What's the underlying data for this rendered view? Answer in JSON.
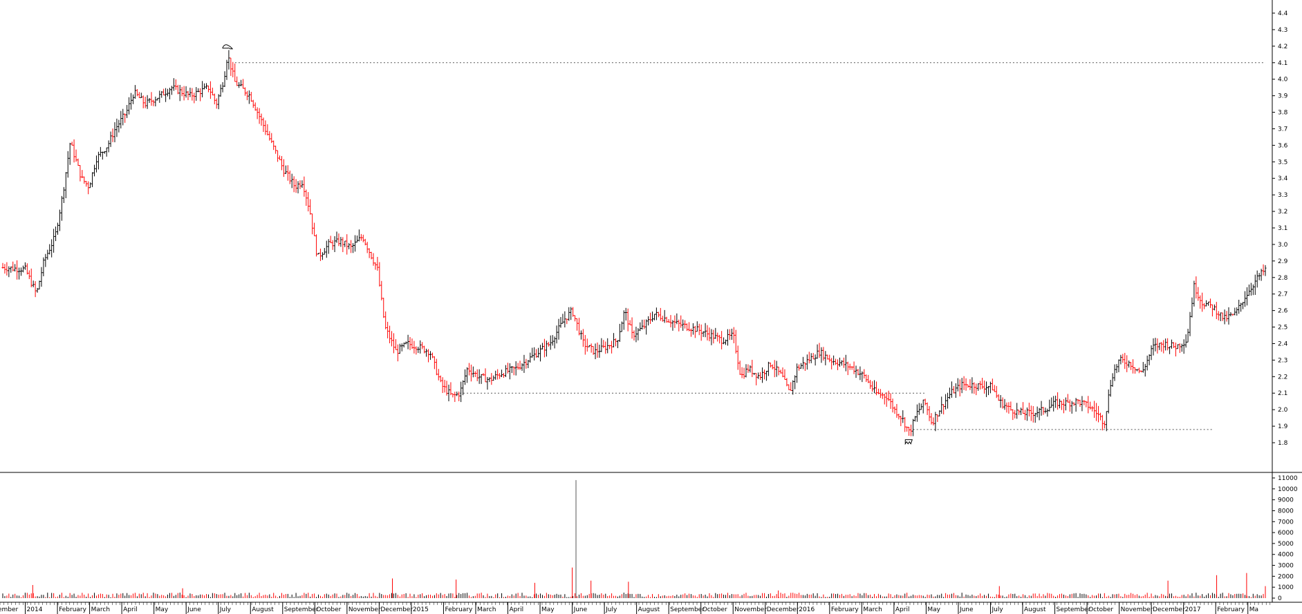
{
  "chart_data": [
    {
      "type": "candlestick",
      "title": "",
      "xlabel": "",
      "ylabel": "",
      "ylim": [
        1.72,
        4.45
      ],
      "yticks": [
        1.8,
        1.9,
        2.0,
        2.1,
        2.2,
        2.3,
        2.4,
        2.5,
        2.6,
        2.7,
        2.8,
        2.9,
        3.0,
        3.1,
        3.2,
        3.3,
        3.4,
        3.5,
        3.6,
        3.7,
        3.8,
        3.9,
        4.0,
        4.1,
        4.2,
        4.3,
        4.4
      ],
      "ytick_labels": [
        "1.8",
        "1.9",
        "2.0",
        "2.1",
        "2.2",
        "2.3",
        "2.4",
        "2.5",
        "2.6",
        "2.7",
        "2.8",
        "2.9",
        "3.0",
        "3.1",
        "3.2",
        "3.3",
        "3.4",
        "3.5",
        "3.6",
        "3.7",
        "3.8",
        "3.9",
        "4.0",
        "4.1",
        "4.2",
        "4.3",
        "4.4"
      ],
      "x_months": [
        "cember",
        "2014",
        "February",
        "March",
        "April",
        "May",
        "June",
        "July",
        "August",
        "September",
        "October",
        "November",
        "December",
        "2015",
        "February",
        "March",
        "April",
        "May",
        "June",
        "July",
        "August",
        "September",
        "October",
        "November",
        "December",
        "2016",
        "February",
        "March",
        "April",
        "May",
        "June",
        "July",
        "August",
        "September",
        "October",
        "November",
        "December",
        "2017",
        "February",
        "Ma"
      ],
      "price_path": [
        [
          0,
          2.86
        ],
        [
          6,
          2.85
        ],
        [
          9,
          2.7
        ],
        [
          11,
          2.9
        ],
        [
          14,
          3.05
        ],
        [
          16,
          3.3
        ],
        [
          18,
          3.62
        ],
        [
          21,
          3.4
        ],
        [
          23,
          3.35
        ],
        [
          25,
          3.52
        ],
        [
          28,
          3.6
        ],
        [
          30,
          3.7
        ],
        [
          33,
          3.8
        ],
        [
          35,
          3.92
        ],
        [
          38,
          3.85
        ],
        [
          42,
          3.9
        ],
        [
          45,
          3.95
        ],
        [
          50,
          3.9
        ],
        [
          55,
          3.95
        ],
        [
          57,
          3.85
        ],
        [
          59,
          4.0
        ],
        [
          60,
          4.15
        ],
        [
          62,
          3.98
        ],
        [
          66,
          3.9
        ],
        [
          70,
          3.7
        ],
        [
          73,
          3.55
        ],
        [
          75,
          3.45
        ],
        [
          78,
          3.35
        ],
        [
          80,
          3.38
        ],
        [
          82,
          3.2
        ],
        [
          84,
          2.92
        ],
        [
          87,
          3.0
        ],
        [
          90,
          3.02
        ],
        [
          93,
          2.98
        ],
        [
          96,
          3.05
        ],
        [
          98,
          2.95
        ],
        [
          100,
          2.85
        ],
        [
          102,
          2.5
        ],
        [
          105,
          2.35
        ],
        [
          108,
          2.4
        ],
        [
          111,
          2.38
        ],
        [
          114,
          2.35
        ],
        [
          117,
          2.15
        ],
        [
          120,
          2.08
        ],
        [
          122,
          2.1
        ],
        [
          124,
          2.25
        ],
        [
          127,
          2.2
        ],
        [
          130,
          2.18
        ],
        [
          133,
          2.22
        ],
        [
          137,
          2.25
        ],
        [
          140,
          2.3
        ],
        [
          143,
          2.35
        ],
        [
          146,
          2.4
        ],
        [
          150,
          2.55
        ],
        [
          152,
          2.6
        ],
        [
          155,
          2.4
        ],
        [
          158,
          2.35
        ],
        [
          161,
          2.38
        ],
        [
          164,
          2.42
        ],
        [
          166,
          2.6
        ],
        [
          168,
          2.45
        ],
        [
          171,
          2.5
        ],
        [
          174,
          2.58
        ],
        [
          177,
          2.55
        ],
        [
          180,
          2.52
        ],
        [
          183,
          2.5
        ],
        [
          186,
          2.48
        ],
        [
          189,
          2.45
        ],
        [
          192,
          2.42
        ],
        [
          195,
          2.45
        ],
        [
          197,
          2.2
        ],
        [
          199,
          2.25
        ],
        [
          202,
          2.2
        ],
        [
          205,
          2.28
        ],
        [
          208,
          2.2
        ],
        [
          210,
          2.1
        ],
        [
          212,
          2.25
        ],
        [
          215,
          2.3
        ],
        [
          218,
          2.35
        ],
        [
          221,
          2.3
        ],
        [
          224,
          2.28
        ],
        [
          227,
          2.25
        ],
        [
          230,
          2.2
        ],
        [
          233,
          2.1
        ],
        [
          236,
          2.08
        ],
        [
          238,
          2.0
        ],
        [
          240,
          1.95
        ],
        [
          242,
          1.86
        ],
        [
          244,
          1.98
        ],
        [
          246,
          2.05
        ],
        [
          248,
          1.92
        ],
        [
          250,
          2.0
        ],
        [
          253,
          2.1
        ],
        [
          256,
          2.15
        ],
        [
          259,
          2.15
        ],
        [
          262,
          2.14
        ],
        [
          264,
          2.14
        ],
        [
          266,
          2.05
        ],
        [
          269,
          2.0
        ],
        [
          272,
          1.98
        ],
        [
          275,
          1.98
        ],
        [
          278,
          2.0
        ],
        [
          281,
          2.04
        ],
        [
          284,
          2.04
        ],
        [
          287,
          2.05
        ],
        [
          290,
          2.02
        ],
        [
          292,
          1.98
        ],
        [
          294,
          1.92
        ],
        [
          296,
          2.2
        ],
        [
          298,
          2.3
        ],
        [
          301,
          2.28
        ],
        [
          304,
          2.22
        ],
        [
          307,
          2.38
        ],
        [
          310,
          2.4
        ],
        [
          313,
          2.38
        ],
        [
          316,
          2.42
        ],
        [
          318,
          2.75
        ],
        [
          320,
          2.65
        ],
        [
          323,
          2.62
        ],
        [
          326,
          2.55
        ],
        [
          329,
          2.58
        ],
        [
          332,
          2.7
        ],
        [
          335,
          2.8
        ],
        [
          337,
          2.85
        ]
      ],
      "annotations": [
        "4.1",
        "2.1",
        "1.88"
      ],
      "volume": {
        "ylim": [
          0,
          11000
        ],
        "yticks": [
          0,
          1000,
          2000,
          3000,
          4000,
          5000,
          6000,
          7000,
          8000,
          9000,
          10000,
          11000
        ],
        "ytick_labels": [
          "0",
          "1000",
          "2000",
          "3000",
          "4000",
          "5000",
          "6000",
          "7000",
          "8000",
          "9000",
          "10000",
          "11000"
        ],
        "spikes": [
          [
            8,
            1200
          ],
          [
            48,
            900
          ],
          [
            104,
            1800
          ],
          [
            121,
            1700
          ],
          [
            142,
            1400
          ],
          [
            152,
            2800
          ],
          [
            153,
            10800
          ],
          [
            157,
            1600
          ],
          [
            167,
            1500
          ],
          [
            207,
            700
          ],
          [
            266,
            1100
          ],
          [
            311,
            1600
          ],
          [
            324,
            2100
          ],
          [
            332,
            2300
          ],
          [
            337,
            1100
          ]
        ],
        "up_color": "#000000",
        "down_color": "#ff0000"
      },
      "grid": false,
      "legend": "none",
      "colors": {
        "up": "#000000",
        "down": "#ff0000",
        "axis": "#000000",
        "reference_line": "#555555"
      }
    }
  ]
}
